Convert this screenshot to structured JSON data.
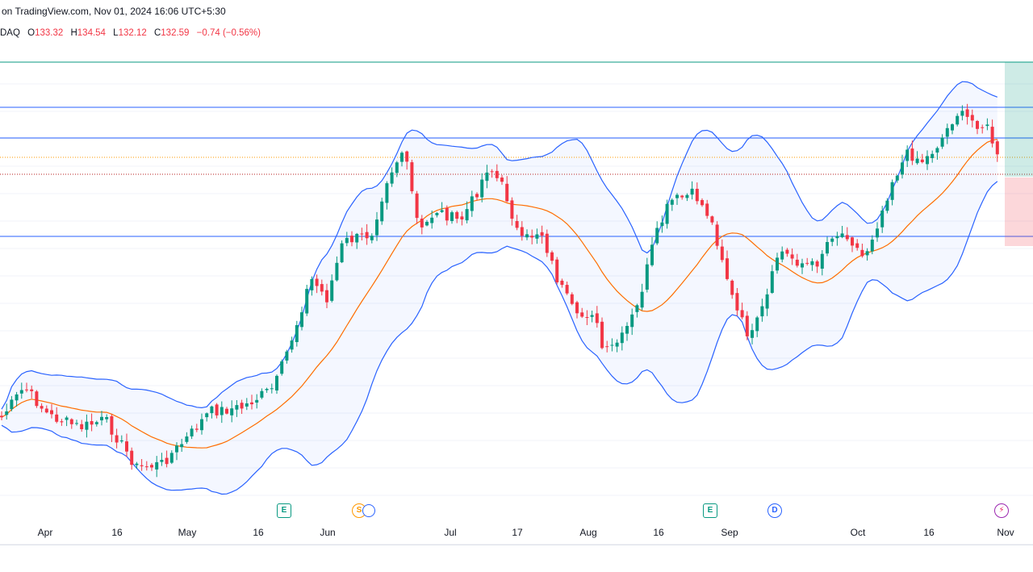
{
  "header": {
    "source_text": "on TradingView.com, Nov 01, 2024 16:06 UTC+5:30"
  },
  "ohlc": {
    "exchange_fragment": "DAQ",
    "o_label": "O",
    "o_value": "133.32",
    "h_label": "H",
    "h_value": "134.54",
    "l_label": "L",
    "l_value": "132.12",
    "c_label": "C",
    "c_value": "132.59",
    "change": "−0.74 (−0.56%)"
  },
  "colors": {
    "up": "#089981",
    "down": "#f23645",
    "band": "#2962ff",
    "basis": "#ff6d00",
    "band_fill": "#2962ff",
    "profit_zone": "#089981",
    "loss_zone": "#f23645",
    "hline": "#2962ff"
  },
  "x_axis": {
    "labels": [
      "Apr",
      "16",
      "May",
      "16",
      "Jun",
      "Jul",
      "17",
      "Aug",
      "16",
      "Sep",
      "Oct",
      "16",
      "Nov"
    ]
  },
  "events": [
    {
      "type": "e",
      "glyph": "E",
      "name": "earnings-icon"
    },
    {
      "type": "s",
      "glyph": "S",
      "name": "split-icon"
    },
    {
      "type": "e",
      "glyph": "E",
      "name": "earnings-icon"
    },
    {
      "type": "d",
      "glyph": "D",
      "name": "dividend-icon"
    },
    {
      "type": "x",
      "glyph": "⚡",
      "name": "flash-icon"
    }
  ],
  "chart_data": {
    "type": "candlestick",
    "indicators": [
      "Bollinger Bands",
      "Basis"
    ],
    "y_axis_shown": false,
    "candles_close_track": [
      [
        0,
        520
      ],
      [
        30,
        480
      ],
      [
        60,
        515
      ],
      [
        100,
        530
      ],
      [
        130,
        520
      ],
      [
        170,
        580
      ],
      [
        200,
        575
      ],
      [
        230,
        545
      ],
      [
        260,
        510
      ],
      [
        300,
        505
      ],
      [
        340,
        480
      ],
      [
        365,
        410
      ],
      [
        385,
        345
      ],
      [
        405,
        370
      ],
      [
        425,
        300
      ],
      [
        460,
        290
      ],
      [
        480,
        220
      ],
      [
        500,
        185
      ],
      [
        520,
        290
      ],
      [
        540,
        260
      ],
      [
        570,
        275
      ],
      [
        590,
        240
      ],
      [
        605,
        205
      ],
      [
        625,
        235
      ],
      [
        645,
        300
      ],
      [
        670,
        285
      ],
      [
        690,
        345
      ],
      [
        715,
        395
      ],
      [
        735,
        385
      ],
      [
        748,
        440
      ],
      [
        770,
        420
      ],
      [
        790,
        380
      ],
      [
        810,
        300
      ],
      [
        830,
        250
      ],
      [
        860,
        240
      ],
      [
        880,
        270
      ],
      [
        895,
        320
      ],
      [
        910,
        380
      ],
      [
        930,
        420
      ],
      [
        950,
        370
      ],
      [
        965,
        310
      ],
      [
        990,
        325
      ],
      [
        1010,
        330
      ],
      [
        1030,
        290
      ],
      [
        1050,
        290
      ],
      [
        1070,
        320
      ],
      [
        1090,
        270
      ],
      [
        1105,
        225
      ],
      [
        1125,
        190
      ],
      [
        1145,
        200
      ],
      [
        1165,
        175
      ],
      [
        1185,
        140
      ],
      [
        1205,
        150
      ],
      [
        1225,
        160
      ],
      [
        1240,
        210
      ]
    ],
    "horizontal_levels": [
      "top",
      "upper",
      "mid",
      "lower"
    ],
    "position_tool": {
      "side": "long"
    }
  }
}
